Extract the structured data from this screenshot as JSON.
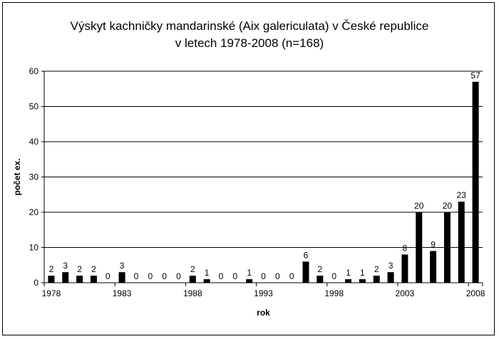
{
  "chart_data": {
    "type": "bar",
    "title_line1": "Výskyt kachničky mandarinské (Aix galericulata) v České republice",
    "title_line2": "v letech 1978-2008 (n=168)",
    "xlabel": "rok",
    "ylabel": "počet ex.",
    "ylim": [
      0,
      60
    ],
    "yticks": [
      0,
      10,
      20,
      30,
      40,
      50,
      60
    ],
    "xtick_labels": [
      "1978",
      "1983",
      "1988",
      "1993",
      "1998",
      "2003",
      "2008"
    ],
    "grid": true,
    "legend": "none",
    "bar_color": "#000000",
    "categories": [
      "1978",
      "1979",
      "1980",
      "1981",
      "1982",
      "1983",
      "1984",
      "1985",
      "1986",
      "1987",
      "1988",
      "1989",
      "1990",
      "1991",
      "1992",
      "1993",
      "1994",
      "1995",
      "1996",
      "1997",
      "1998",
      "1999",
      "2000",
      "2001",
      "2002",
      "2003",
      "2004",
      "2005",
      "2006",
      "2007",
      "2008"
    ],
    "values": [
      2,
      3,
      2,
      2,
      0,
      3,
      0,
      0,
      0,
      0,
      2,
      1,
      0,
      0,
      1,
      0,
      0,
      0,
      6,
      2,
      0,
      1,
      1,
      2,
      3,
      8,
      20,
      9,
      20,
      23,
      57
    ]
  }
}
